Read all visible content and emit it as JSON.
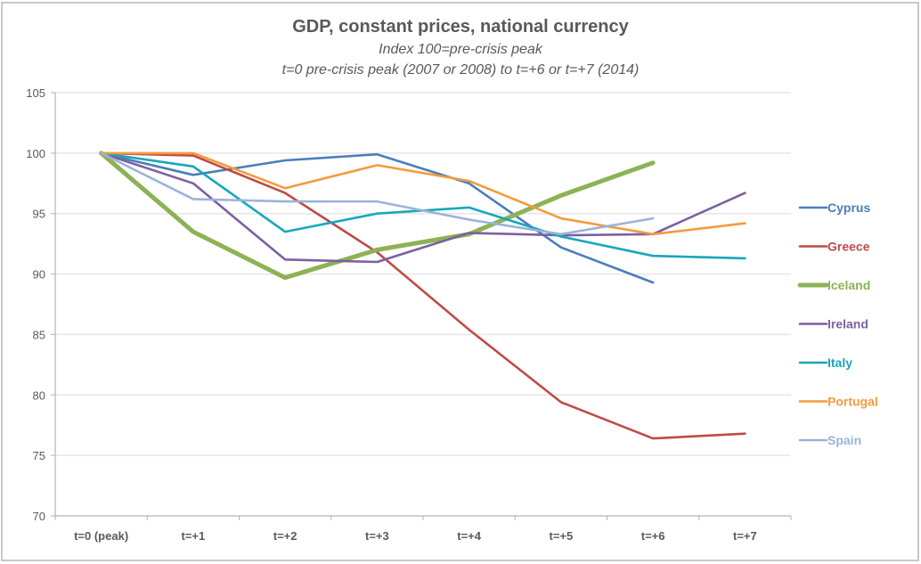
{
  "chart_data": {
    "type": "line",
    "title": "GDP, constant prices, national currency",
    "subtitle": "Index 100=pre-crisis peak",
    "subtitle2": "t=0 pre-crisis peak (2007 or 2008) to t=+6 or t=+7 (2014)",
    "xlabel": "",
    "ylabel": "",
    "categories": [
      "t=0 (peak)",
      "t=+1",
      "t=+2",
      "t=+3",
      "t=+4",
      "t=+5",
      "t=+6",
      "t=+7"
    ],
    "ylim": [
      70,
      105
    ],
    "yticks": [
      70,
      75,
      80,
      85,
      90,
      95,
      100,
      105
    ],
    "grid": true,
    "legend_position": "right",
    "series": [
      {
        "name": "Cyprus",
        "color": "#4a7ebb",
        "emphasis": false,
        "values": [
          100,
          98.2,
          99.4,
          99.9,
          97.5,
          92.2,
          89.3,
          null
        ]
      },
      {
        "name": "Greece",
        "color": "#be4b48",
        "emphasis": false,
        "values": [
          100,
          99.8,
          96.7,
          91.8,
          85.4,
          79.4,
          76.4,
          76.8
        ]
      },
      {
        "name": "Iceland",
        "color": "#8db255",
        "emphasis": true,
        "values": [
          100,
          93.5,
          89.7,
          92.0,
          93.3,
          96.5,
          99.2,
          null
        ]
      },
      {
        "name": "Ireland",
        "color": "#7d5fa0",
        "emphasis": false,
        "values": [
          100,
          97.5,
          91.2,
          91.0,
          93.4,
          93.2,
          93.3,
          96.7
        ]
      },
      {
        "name": "Italy",
        "color": "#17a7bc",
        "emphasis": false,
        "values": [
          100,
          98.9,
          93.5,
          95.0,
          95.5,
          93.1,
          91.5,
          91.3
        ]
      },
      {
        "name": "Portugal",
        "color": "#f59a3c",
        "emphasis": false,
        "values": [
          100,
          100.0,
          97.1,
          99.0,
          97.7,
          94.6,
          93.3,
          94.2
        ]
      },
      {
        "name": "Spain",
        "color": "#9bb3d9",
        "emphasis": false,
        "values": [
          100,
          96.2,
          96.0,
          96.0,
          94.5,
          93.3,
          94.6,
          null
        ]
      }
    ]
  }
}
